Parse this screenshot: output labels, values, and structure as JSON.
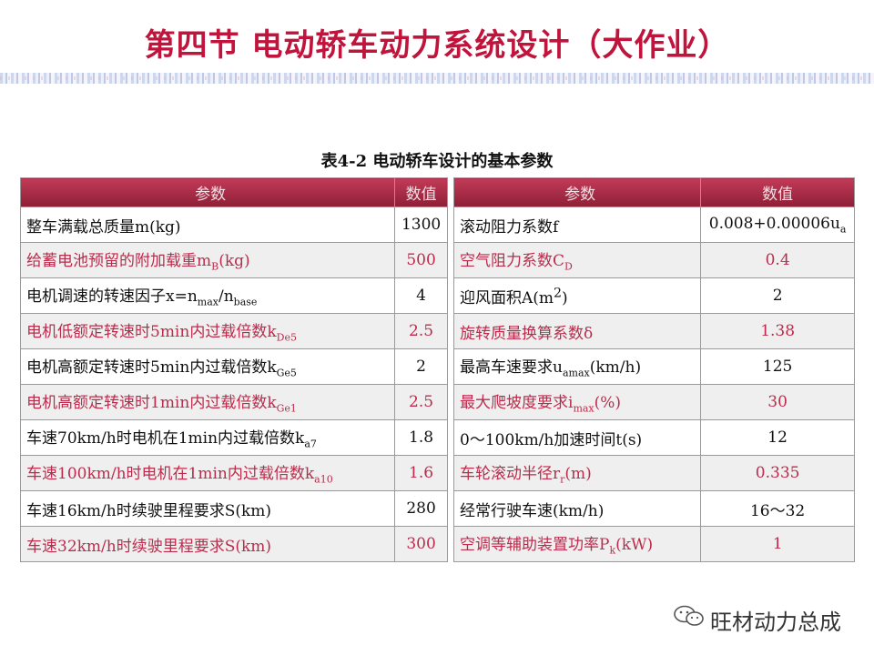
{
  "slide_title": "第四节  电动轿车动力系统设计（大作业）",
  "table_caption": "表4-2   电动轿车设计的基本参数",
  "headers": {
    "param": "参数",
    "value": "数值"
  },
  "left_rows": [
    {
      "label": "整车满载总质量m(kg)",
      "value": "1300"
    },
    {
      "label": "给蓄电池预留的附加载重m",
      "sub": "B",
      "suffix": "(kg)",
      "value": "500"
    },
    {
      "label": "电机调速的转速因子x=n",
      "sub": "max",
      "mid": "/n",
      "sub2": "base",
      "value": "4"
    },
    {
      "label": "电机低额定转速时5min内过载倍数k",
      "sub": "De5",
      "value": "2.5"
    },
    {
      "label": "电机高额定转速时5min内过载倍数k",
      "sub": "Ge5",
      "value": "2"
    },
    {
      "label": "电机高额定转速时1min内过载倍数k",
      "sub": "Ge1",
      "value": "2.5"
    },
    {
      "label": "车速70km/h时电机在1min内过载倍数k",
      "sub": "a7",
      "value": "1.8"
    },
    {
      "label": "车速100km/h时电机在1min内过载倍数k",
      "sub": "a10",
      "value": "1.6"
    },
    {
      "label": "车速16km/h时续驶里程要求S(km)",
      "value": "280"
    },
    {
      "label": "车速32km/h时续驶里程要求S(km)",
      "value": "300"
    }
  ],
  "right_rows": [
    {
      "label": "滚动阻力系数f",
      "value": "0.008+0.00006u",
      "vsub": "a"
    },
    {
      "label": "空气阻力系数C",
      "sub": "D",
      "value": "0.4"
    },
    {
      "label": "迎风面积A(m",
      "sup": "2",
      "suffix": ")",
      "value": "2"
    },
    {
      "label": "旋转质量换算系数δ",
      "value": "1.38"
    },
    {
      "label": "最高车速要求u",
      "sub": "amax",
      "suffix": "(km/h)",
      "value": "125"
    },
    {
      "label": "最大爬坡度要求i",
      "sub": "max",
      "suffix": "(%)",
      "value": "30"
    },
    {
      "label": " 0～100km/h加速时间t(s)",
      "value": "12"
    },
    {
      "label": "车轮滚动半径r",
      "sub": "r",
      "suffix": "(m)",
      "value": "0.335"
    },
    {
      "label": "经常行驶车速(km/h)",
      "value": "16～32"
    },
    {
      "label": "空调等辅助装置功率P",
      "sub": "k",
      "suffix": "(kW)",
      "value": "1"
    }
  ],
  "footer_text": "旺材动力总成",
  "colors": {
    "title": "#c0143c",
    "header": "#a52a45",
    "alt_text": "#bd2b4c"
  }
}
